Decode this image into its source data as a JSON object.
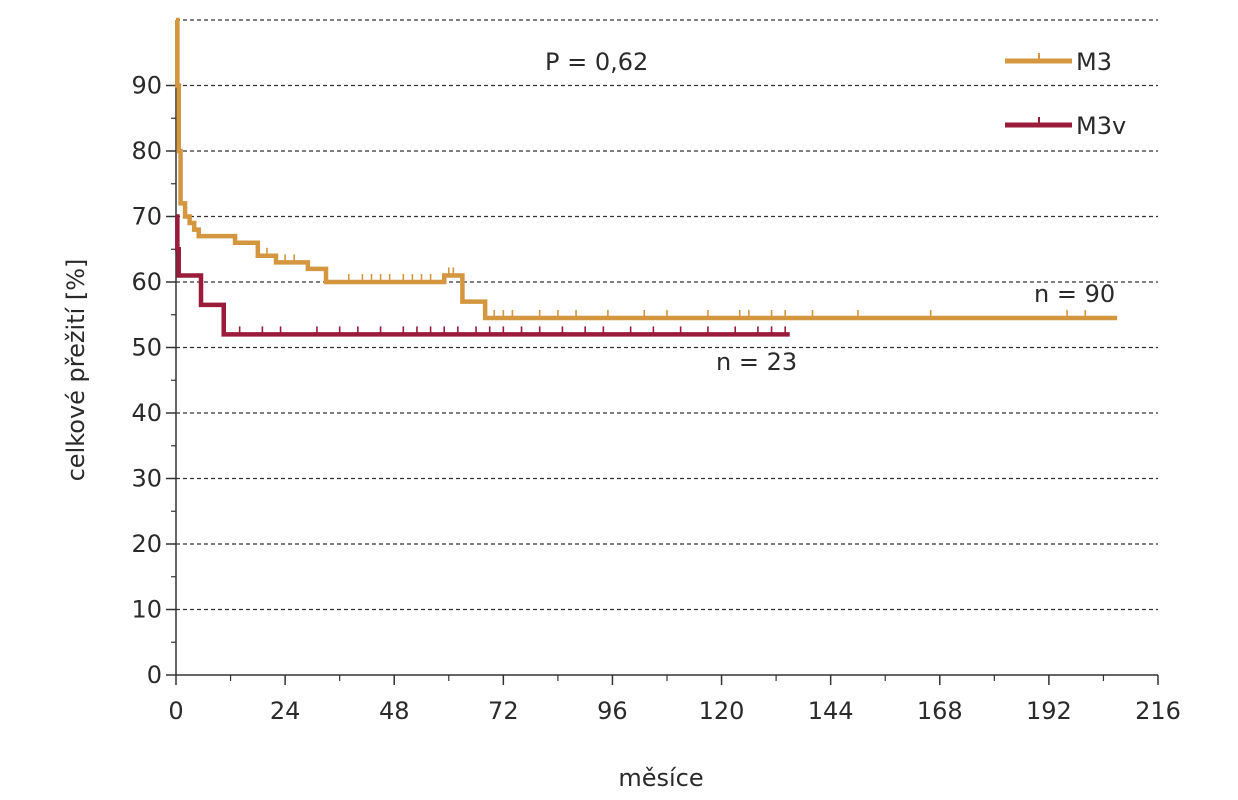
{
  "chart_data": {
    "type": "line",
    "step": true,
    "title": "",
    "xlabel": "měsíce",
    "ylabel": "celkové přežití [%]",
    "xlim": [
      0,
      216
    ],
    "ylim": [
      0,
      100
    ],
    "x_ticks": [
      0,
      24,
      48,
      72,
      96,
      120,
      144,
      168,
      192,
      216
    ],
    "y_ticks": [
      0,
      10,
      20,
      30,
      40,
      50,
      60,
      70,
      80,
      90
    ],
    "grid": "horizontal dashed",
    "legend_position": "top-right",
    "annotations": [
      {
        "text": "P = 0,62"
      },
      {
        "text": "n = 90"
      },
      {
        "text": "n = 23"
      }
    ],
    "series": [
      {
        "name": "M3",
        "color": "#d4963f",
        "points": [
          [
            0,
            100
          ],
          [
            0.3,
            90
          ],
          [
            0.6,
            80
          ],
          [
            1,
            72
          ],
          [
            2,
            70
          ],
          [
            3,
            69
          ],
          [
            4,
            68
          ],
          [
            5,
            67
          ],
          [
            12,
            67
          ],
          [
            13,
            66
          ],
          [
            17,
            66
          ],
          [
            18,
            64
          ],
          [
            21,
            64
          ],
          [
            22,
            63
          ],
          [
            28,
            63
          ],
          [
            29,
            62
          ],
          [
            32,
            62
          ],
          [
            33,
            60
          ],
          [
            58,
            60
          ],
          [
            59,
            61
          ],
          [
            62,
            61
          ],
          [
            63,
            57
          ],
          [
            67,
            57
          ],
          [
            68,
            54.5
          ],
          [
            207,
            54.5
          ]
        ],
        "censor_x": [
          20,
          24,
          26,
          38,
          41,
          43,
          45,
          47,
          50,
          52,
          54,
          56,
          60,
          61,
          70,
          72,
          74,
          80,
          84,
          88,
          95,
          103,
          108,
          117,
          124,
          126,
          131,
          134,
          140,
          150,
          166,
          196,
          200
        ]
      },
      {
        "name": "M3v",
        "color": "#9b1b3a",
        "points": [
          [
            0,
            70
          ],
          [
            0.3,
            65
          ],
          [
            0.6,
            61
          ],
          [
            5,
            61
          ],
          [
            5.5,
            56.5
          ],
          [
            10,
            56.5
          ],
          [
            10.5,
            52
          ],
          [
            135,
            52
          ]
        ],
        "censor_x": [
          14,
          19,
          23,
          31,
          36,
          40,
          45,
          50,
          53,
          56,
          59,
          62,
          66,
          69,
          72,
          76,
          80,
          85,
          90,
          94,
          100,
          105,
          111,
          117,
          123,
          128,
          131,
          134
        ]
      }
    ]
  }
}
